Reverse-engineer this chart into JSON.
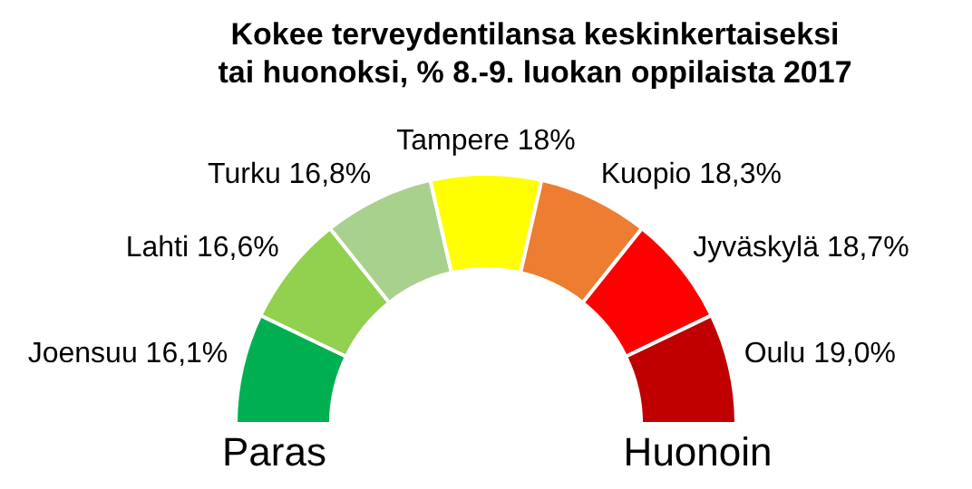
{
  "chart_data": {
    "type": "other",
    "title": "Kokee terveydentilansa keskinkertaiseksi\ntai huonoksi, % 8.-9. luokan oppilaista 2017",
    "categories": [
      "Joensuu",
      "Lahti",
      "Turku",
      "Tampere",
      "Kuopio",
      "Jyväskylä",
      "Oulu"
    ],
    "values": [
      16.1,
      16.6,
      16.8,
      18,
      18.3,
      18.7,
      19.0
    ],
    "value_labels": [
      "16,1%",
      "16,6%",
      "16,8%",
      "18%",
      "18,3%",
      "18,7%",
      "19,0%"
    ],
    "colors": [
      "#00b050",
      "#92d050",
      "#a9d18e",
      "#ffff00",
      "#ed7d31",
      "#ff0000",
      "#c00000"
    ],
    "annotations": [
      "Paras",
      "Huonoin"
    ]
  }
}
